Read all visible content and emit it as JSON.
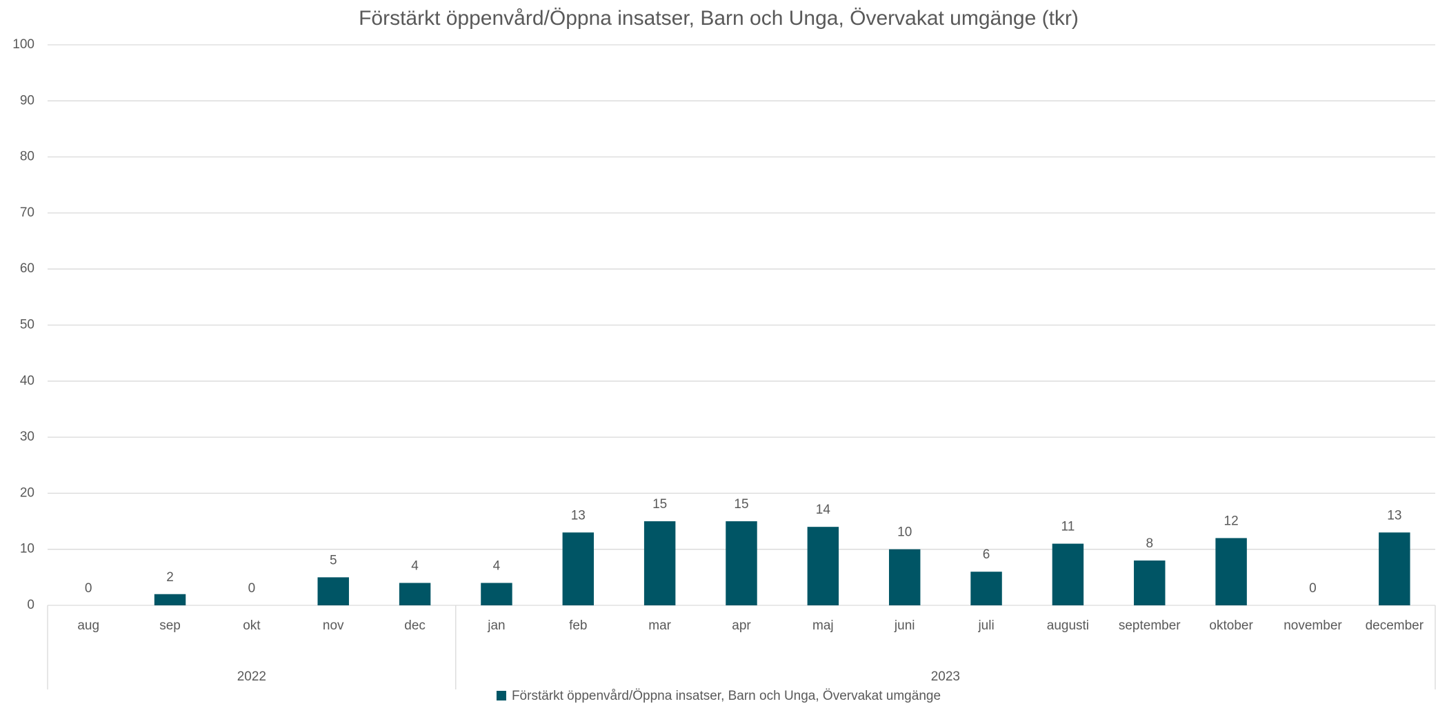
{
  "chart_data": {
    "type": "bar",
    "title": "Förstärkt öppenvård/Öppna insatser, Barn och Unga, Övervakat umgänge (tkr)",
    "categories": [
      "aug",
      "sep",
      "okt",
      "nov",
      "dec",
      "jan",
      "feb",
      "mar",
      "apr",
      "maj",
      "juni",
      "juli",
      "augusti",
      "september",
      "oktober",
      "november",
      "december"
    ],
    "category_years": [
      "2022",
      "2022",
      "2022",
      "2022",
      "2022",
      "2023",
      "2023",
      "2023",
      "2023",
      "2023",
      "2023",
      "2023",
      "2023",
      "2023",
      "2023",
      "2023",
      "2023"
    ],
    "series": [
      {
        "name": "Förstärkt öppenvård/Öppna insatser, Barn och Unga, Övervakat umgänge",
        "color": "#005565",
        "values": [
          0,
          2,
          0,
          5,
          4,
          4,
          13,
          15,
          15,
          14,
          10,
          6,
          11,
          8,
          12,
          0,
          13
        ]
      }
    ],
    "ylim": [
      0,
      100
    ],
    "yticks": [
      0,
      10,
      20,
      30,
      40,
      50,
      60,
      70,
      80,
      90,
      100
    ],
    "grid": true,
    "legend": "bottom"
  }
}
